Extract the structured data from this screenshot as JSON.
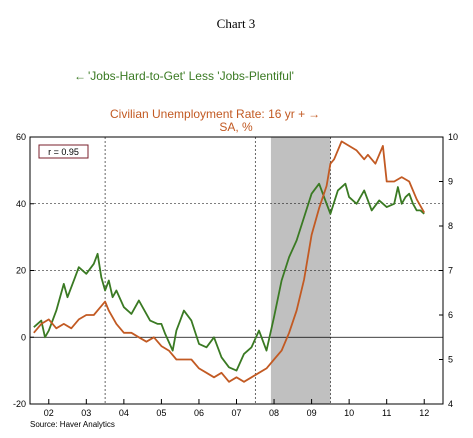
{
  "chart_data": {
    "type": "line",
    "title": "Chart 3",
    "source": "Source: Haver Analytics",
    "correlation_label": "r = 0.95",
    "left_series_label": "'Jobs-Hard-to-Get' Less 'Jobs-Plentiful'",
    "left_arrow": "←",
    "right_series_label_line1": "Civilian Unemployment Rate: 16 yr +",
    "right_series_label_line2": "SA, %",
    "right_arrow": "→",
    "x_range": [
      2001.5,
      2012.5
    ],
    "x_tick_labels": [
      "02",
      "03",
      "04",
      "05",
      "06",
      "07",
      "08",
      "09",
      "10",
      "11",
      "12"
    ],
    "y_left": {
      "min": -20,
      "max": 60,
      "ticks": [
        -20,
        0,
        20,
        40,
        60
      ]
    },
    "y_right": {
      "min": 4,
      "max": 10,
      "ticks": [
        4,
        5,
        6,
        7,
        8,
        9,
        10
      ]
    },
    "recession_shading": [
      2007.917,
      2009.5
    ],
    "colors": {
      "jobs_series": "#3a7a23",
      "unemployment_series": "#c25a23",
      "recession": "#c0c0c0",
      "correlation_box_border": "#7a1f2b"
    },
    "series": [
      {
        "name": "'Jobs-Hard-to-Get' Less 'Jobs-Plentiful'",
        "axis": "left",
        "x": [
          2001.6,
          2001.8,
          2001.9,
          2002.0,
          2002.2,
          2002.4,
          2002.5,
          2002.7,
          2002.8,
          2003.0,
          2003.2,
          2003.3,
          2003.4,
          2003.5,
          2003.6,
          2003.7,
          2003.8,
          2004.0,
          2004.2,
          2004.4,
          2004.5,
          2004.7,
          2004.9,
          2005.0,
          2005.1,
          2005.3,
          2005.4,
          2005.5,
          2005.6,
          2005.8,
          2006.0,
          2006.2,
          2006.4,
          2006.6,
          2006.8,
          2007.0,
          2007.2,
          2007.4,
          2007.6,
          2007.8,
          2008.0,
          2008.2,
          2008.4,
          2008.6,
          2008.8,
          2009.0,
          2009.2,
          2009.4,
          2009.5,
          2009.7,
          2009.9,
          2010.0,
          2010.2,
          2010.4,
          2010.6,
          2010.8,
          2011.0,
          2011.2,
          2011.3,
          2011.4,
          2011.5,
          2011.6,
          2011.7,
          2011.8,
          2011.9,
          2012.0
        ],
        "values": [
          3,
          5,
          0,
          2,
          8,
          16,
          12,
          18,
          21,
          19,
          22,
          25,
          18,
          14,
          17,
          12,
          14,
          9,
          7,
          11,
          9,
          5,
          4,
          4,
          1,
          -4,
          2,
          5,
          8,
          5,
          -2,
          -3,
          0,
          -6,
          -9,
          -10,
          -5,
          -3,
          2,
          -4,
          6,
          17,
          24,
          29,
          36,
          43,
          46,
          40,
          37,
          44,
          46,
          42,
          40,
          44,
          38,
          41,
          39,
          40,
          45,
          40,
          42,
          43,
          40,
          38,
          38,
          37
        ]
      },
      {
        "name": "Civilian Unemployment Rate: 16 yr +",
        "axis": "right",
        "x": [
          2001.6,
          2001.8,
          2002.0,
          2002.2,
          2002.4,
          2002.6,
          2002.8,
          2003.0,
          2003.2,
          2003.4,
          2003.5,
          2003.6,
          2003.8,
          2004.0,
          2004.2,
          2004.4,
          2004.6,
          2004.8,
          2005.0,
          2005.2,
          2005.4,
          2005.6,
          2005.8,
          2006.0,
          2006.2,
          2006.4,
          2006.6,
          2006.8,
          2007.0,
          2007.2,
          2007.4,
          2007.6,
          2007.8,
          2008.0,
          2008.2,
          2008.4,
          2008.6,
          2008.8,
          2009.0,
          2009.2,
          2009.4,
          2009.5,
          2009.6,
          2009.8,
          2010.0,
          2010.2,
          2010.4,
          2010.5,
          2010.7,
          2010.9,
          2011.0,
          2011.2,
          2011.4,
          2011.6,
          2011.8,
          2012.0
        ],
        "values": [
          5.6,
          5.8,
          5.9,
          5.7,
          5.8,
          5.7,
          5.9,
          6.0,
          6.0,
          6.2,
          6.3,
          6.1,
          5.8,
          5.6,
          5.6,
          5.5,
          5.4,
          5.5,
          5.3,
          5.2,
          5.0,
          5.0,
          5.0,
          4.8,
          4.7,
          4.6,
          4.7,
          4.5,
          4.6,
          4.5,
          4.6,
          4.7,
          4.8,
          5.0,
          5.2,
          5.6,
          6.1,
          6.8,
          7.8,
          8.4,
          8.9,
          9.4,
          9.5,
          9.9,
          9.8,
          9.7,
          9.5,
          9.6,
          9.4,
          9.8,
          9.0,
          9.0,
          9.1,
          9.0,
          8.6,
          8.3
        ]
      }
    ]
  }
}
